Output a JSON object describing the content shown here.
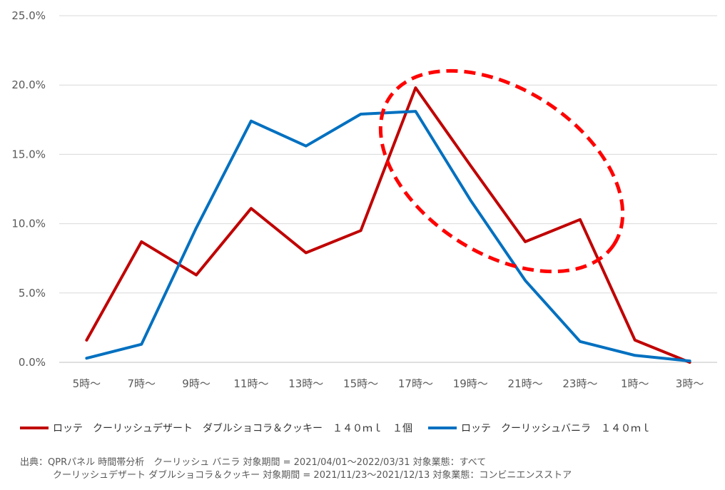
{
  "chart_data": {
    "type": "line",
    "categories": [
      "5時～",
      "7時～",
      "9時～",
      "11時～",
      "13時～",
      "15時～",
      "17時～",
      "19時～",
      "21時～",
      "23時～",
      "1時～",
      "3時～"
    ],
    "series": [
      {
        "name": "ロッテ　クーリッシュデザート　ダブルショコラ＆クッキー　１４０ｍｌ　１個",
        "color": "#c00000",
        "values": [
          1.6,
          8.7,
          6.3,
          11.1,
          7.9,
          9.5,
          19.8,
          14.2,
          8.7,
          10.3,
          1.6,
          0.0
        ]
      },
      {
        "name": "ロッテ　クーリッシュバニラ　１４０ｍｌ",
        "color": "#0070c0",
        "values": [
          0.3,
          1.3,
          9.7,
          17.4,
          15.6,
          17.9,
          18.1,
          11.7,
          5.9,
          1.5,
          0.5,
          0.1
        ]
      }
    ],
    "y_ticks": [
      "0.0%",
      "5.0%",
      "10.0%",
      "15.0%",
      "20.0%",
      "25.0%"
    ],
    "ylim": [
      0,
      25
    ],
    "grid": true,
    "legend_position": "bottom",
    "annotation": {
      "shape": "dashed-ellipse",
      "color": "#ff0000",
      "highlights": "17時～ to 23時～"
    }
  },
  "source": {
    "line1": "出典：QPRパネル 時間帯分析　クーリッシュ バニラ 対象期間 = 2021/04/01～2022/03/31 対象業態：すべて",
    "line2": "クーリッシュデザート ダブルショコラ＆クッキー 対象期間 = 2021/11/23～2021/12/13 対象業態：コンビニエンスストア"
  }
}
